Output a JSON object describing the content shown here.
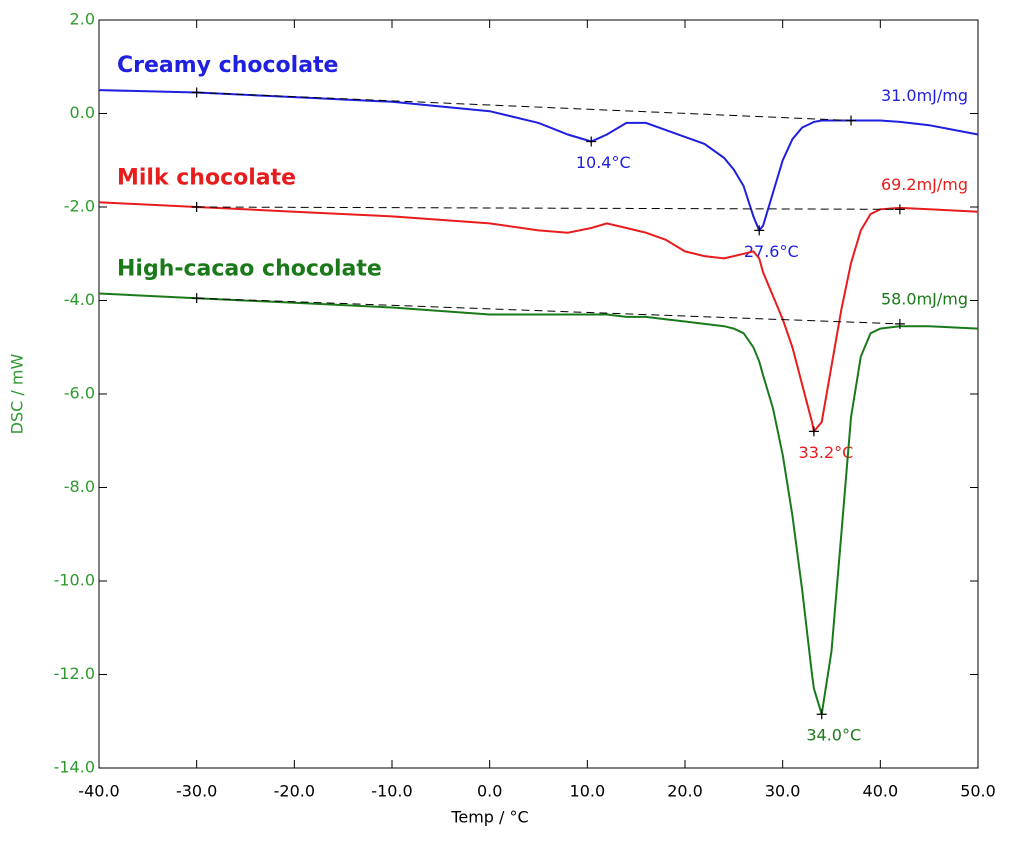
{
  "chart_data": {
    "type": "line",
    "xlabel": "Temp / °C",
    "ylabel": "DSC / mW",
    "xlim": [
      -40,
      50
    ],
    "ylim": [
      -14,
      2
    ],
    "xticks": [
      {
        "value": -40,
        "label": "-40.0"
      },
      {
        "value": -30,
        "label": "-30.0"
      },
      {
        "value": -20,
        "label": "-20.0"
      },
      {
        "value": -10,
        "label": "-10.0"
      },
      {
        "value": 0,
        "label": "0.0"
      },
      {
        "value": 10,
        "label": "10.0"
      },
      {
        "value": 20,
        "label": "20.0"
      },
      {
        "value": 30,
        "label": "30.0"
      },
      {
        "value": 40,
        "label": "40.0"
      },
      {
        "value": 50,
        "label": "50.0"
      }
    ],
    "yticks": [
      {
        "value": 2,
        "label": "2.0"
      },
      {
        "value": 0,
        "label": "0.0"
      },
      {
        "value": -2,
        "label": "-2.0"
      },
      {
        "value": -4,
        "label": "-4.0"
      },
      {
        "value": -6,
        "label": "-6.0"
      },
      {
        "value": -8,
        "label": "-8.0"
      },
      {
        "value": -10,
        "label": "-10.0"
      },
      {
        "value": -12,
        "label": "-12.0"
      },
      {
        "value": -14,
        "label": "-14.0"
      }
    ],
    "axis_color": "#2e9a2e",
    "x": [
      -40,
      -30,
      -20,
      -10,
      0,
      5,
      8,
      10.4,
      12,
      14,
      16,
      18,
      20,
      22,
      24,
      25,
      26,
      27,
      27.6,
      28,
      29,
      30,
      31,
      32,
      33,
      33.2,
      34,
      35,
      36,
      37,
      38,
      39,
      40,
      42,
      45,
      50
    ],
    "series": [
      {
        "name": "Creamy chocolate",
        "color": "#1f1fe0",
        "values": [
          0.5,
          0.45,
          0.35,
          0.25,
          0.05,
          -0.2,
          -0.45,
          -0.6,
          -0.45,
          -0.2,
          -0.2,
          -0.35,
          -0.5,
          -0.65,
          -0.95,
          -1.2,
          -1.55,
          -2.2,
          -2.5,
          -2.4,
          -1.7,
          -1.0,
          -0.55,
          -0.3,
          -0.2,
          -0.18,
          -0.15,
          -0.15,
          -0.15,
          -0.15,
          -0.15,
          -0.15,
          -0.15,
          -0.18,
          -0.25,
          -0.45
        ],
        "baseline": {
          "x": [
            -30,
            37
          ],
          "y": [
            0.45,
            -0.15
          ]
        },
        "enthalpy": "31.0mJ/mg",
        "peaks": [
          {
            "x": 10.4,
            "y": -0.6,
            "label": "10.4°C"
          },
          {
            "x": 27.6,
            "y": -2.5,
            "label": "27.6°C"
          }
        ]
      },
      {
        "name": "Milk chocolate",
        "color": "#e81c1c",
        "values": [
          -1.9,
          -2.0,
          -2.1,
          -2.2,
          -2.35,
          -2.5,
          -2.55,
          -2.45,
          -2.35,
          -2.45,
          -2.55,
          -2.7,
          -2.95,
          -3.05,
          -3.1,
          -3.05,
          -3.0,
          -2.95,
          -3.1,
          -3.4,
          -3.9,
          -4.4,
          -5.0,
          -5.8,
          -6.6,
          -6.8,
          -6.6,
          -5.4,
          -4.2,
          -3.2,
          -2.5,
          -2.15,
          -2.05,
          -2.02,
          -2.05,
          -2.1
        ],
        "baseline": {
          "x": [
            -30,
            42
          ],
          "y": [
            -2.0,
            -2.05
          ]
        },
        "enthalpy": "69.2mJ/mg",
        "peaks": [
          {
            "x": 33.2,
            "y": -6.8,
            "label": "33.2°C"
          }
        ]
      },
      {
        "name": "High-cacao chocolate",
        "color": "#1a7a1a",
        "values": [
          -3.85,
          -3.95,
          -4.05,
          -4.15,
          -4.3,
          -4.3,
          -4.3,
          -4.3,
          -4.3,
          -4.35,
          -4.35,
          -4.4,
          -4.45,
          -4.5,
          -4.55,
          -4.6,
          -4.7,
          -5.0,
          -5.3,
          -5.6,
          -6.3,
          -7.3,
          -8.6,
          -10.2,
          -12.0,
          -12.3,
          -12.85,
          -11.5,
          -9.0,
          -6.5,
          -5.2,
          -4.7,
          -4.6,
          -4.55,
          -4.55,
          -4.6
        ],
        "baseline": {
          "x": [
            -30,
            42
          ],
          "y": [
            -3.95,
            -4.5
          ]
        },
        "enthalpy": "58.0mJ/mg",
        "peaks": [
          {
            "x": 34.0,
            "y": -12.85,
            "label": "34.0°C"
          }
        ]
      }
    ]
  }
}
